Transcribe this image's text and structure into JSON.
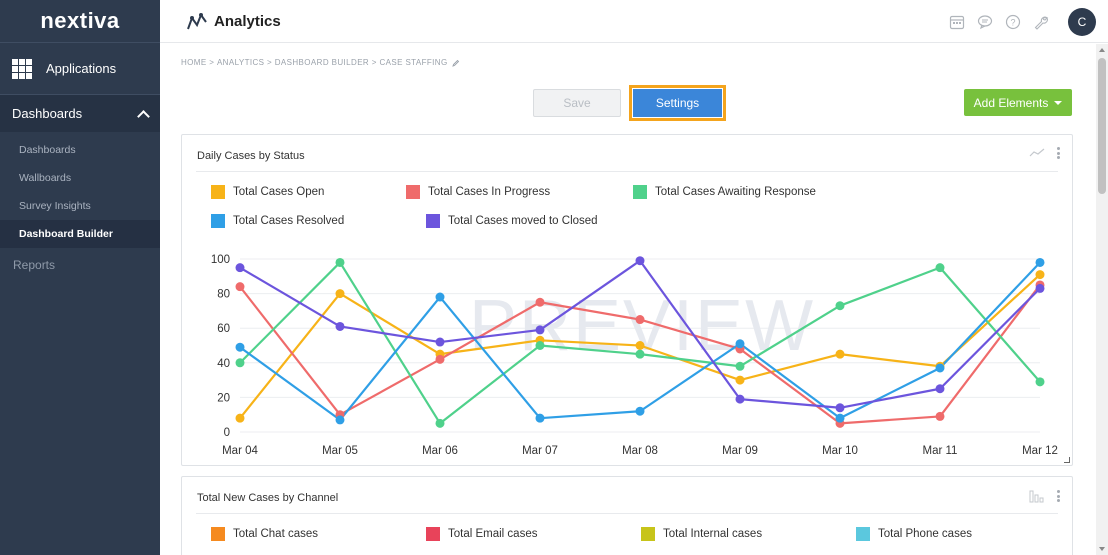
{
  "brand": {
    "logo_text": "nextiva"
  },
  "sidebar": {
    "applications_label": "Applications",
    "section_label": "Dashboards",
    "items": [
      {
        "label": "Dashboards"
      },
      {
        "label": "Wallboards"
      },
      {
        "label": "Survey Insights"
      },
      {
        "label": "Dashboard Builder",
        "active": true
      }
    ],
    "reports_label": "Reports"
  },
  "header": {
    "title": "Analytics",
    "avatar_initial": "C",
    "icons": [
      "calendar-icon",
      "chat-icon",
      "help-icon",
      "wrench-icon"
    ]
  },
  "breadcrumb": {
    "parts": [
      "HOME",
      "ANALYTICS",
      "DASHBOARD BUILDER",
      "CASE STAFFING"
    ],
    "separator": " > "
  },
  "toolbar": {
    "save_label": "Save",
    "settings_label": "Settings",
    "add_elements_label": "Add Elements"
  },
  "card1": {
    "title": "Daily Cases by Status",
    "watermark": "PREVIEW"
  },
  "card2": {
    "title": "Total New Cases by Channel",
    "legend": [
      {
        "name": "Total Chat cases",
        "color": "#f58a1f"
      },
      {
        "name": "Total Email cases",
        "color": "#e8435a"
      },
      {
        "name": "Total Internal cases",
        "color": "#c7c41a"
      },
      {
        "name": "Total Phone cases",
        "color": "#5bc8de"
      }
    ]
  },
  "chart_data": {
    "type": "line",
    "title": "Daily Cases by Status",
    "x": [
      "Mar 04",
      "Mar 05",
      "Mar 06",
      "Mar 07",
      "Mar 08",
      "Mar 09",
      "Mar 10",
      "Mar 11",
      "Mar 12"
    ],
    "yticks": [
      0,
      20,
      40,
      60,
      80,
      100
    ],
    "ylim": [
      0,
      100
    ],
    "grid": true,
    "legend_position": "top-left",
    "series": [
      {
        "name": "Total Cases Open",
        "color": "#f7b318",
        "values": [
          8,
          80,
          45,
          53,
          50,
          30,
          45,
          38,
          91
        ]
      },
      {
        "name": "Total Cases In Progress",
        "color": "#ef6b6b",
        "values": [
          84,
          10,
          42,
          75,
          65,
          48,
          5,
          9,
          85
        ]
      },
      {
        "name": "Total Cases Awaiting Response",
        "color": "#4fd18b",
        "values": [
          40,
          98,
          5,
          50,
          45,
          38,
          73,
          95,
          29
        ]
      },
      {
        "name": "Total Cases Resolved",
        "color": "#2f9fe6",
        "values": [
          49,
          7,
          78,
          8,
          12,
          51,
          8,
          37,
          98
        ]
      },
      {
        "name": "Total Cases moved to Closed",
        "color": "#6c55dd",
        "values": [
          95,
          61,
          52,
          59,
          99,
          19,
          14,
          25,
          83
        ]
      }
    ]
  }
}
